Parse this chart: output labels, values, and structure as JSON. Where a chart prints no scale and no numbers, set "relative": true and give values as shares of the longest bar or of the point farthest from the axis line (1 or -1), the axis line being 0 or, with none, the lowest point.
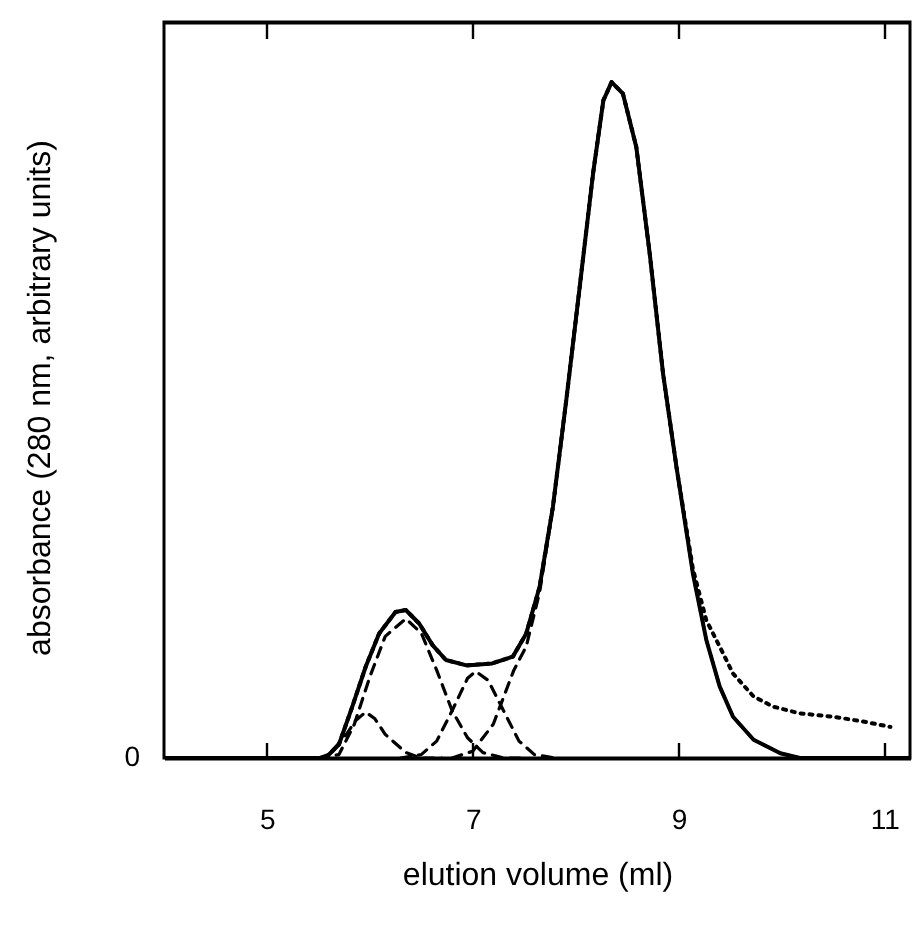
{
  "chart_data": {
    "type": "line",
    "relative": true,
    "xlabel": "elution volume (ml)",
    "ylabel": "absorbance (280 nm, arbitrary units)",
    "xlim": [
      4,
      11.25
    ],
    "xticks": [
      5,
      7,
      9,
      11
    ],
    "grid": false,
    "annotations": [
      "0"
    ],
    "series": [
      {
        "color": "#000000",
        "line_style": "solid",
        "x": [
          4.0,
          5.57,
          5.7,
          5.83,
          5.96,
          6.09,
          6.25,
          6.35,
          6.48,
          6.61,
          6.74,
          6.94,
          7.19,
          7.39,
          7.52,
          7.65,
          7.78,
          7.91,
          8.04,
          8.17,
          8.27,
          8.35,
          8.46,
          8.59,
          8.72,
          8.85,
          8.98,
          9.14,
          9.27,
          9.4,
          9.53,
          9.73,
          9.99,
          10.18,
          11.25
        ],
        "values": [
          0,
          0,
          0.02,
          0.076,
          0.135,
          0.184,
          0.216,
          0.219,
          0.199,
          0.167,
          0.145,
          0.137,
          0.14,
          0.15,
          0.184,
          0.253,
          0.372,
          0.53,
          0.697,
          0.865,
          0.973,
          1.0,
          0.983,
          0.904,
          0.747,
          0.569,
          0.431,
          0.273,
          0.175,
          0.106,
          0.061,
          0.027,
          0.007,
          0,
          0
        ]
      },
      {
        "color": "#000000",
        "line_style": "dotted",
        "x": [
          4.0,
          5.57,
          5.7,
          5.83,
          5.96,
          6.09,
          6.25,
          6.35,
          6.48,
          6.61,
          6.74,
          6.94,
          7.19,
          7.39,
          7.52,
          7.65,
          7.78,
          7.91,
          8.04,
          8.17,
          8.27,
          8.35,
          8.46,
          8.59,
          8.72,
          8.85,
          8.98,
          9.14,
          9.27,
          9.4,
          9.53,
          9.73,
          9.92,
          10.18,
          10.51,
          10.83,
          11.06
        ],
        "values": [
          0,
          0,
          0.02,
          0.076,
          0.135,
          0.184,
          0.216,
          0.219,
          0.199,
          0.167,
          0.145,
          0.137,
          0.14,
          0.15,
          0.184,
          0.253,
          0.372,
          0.53,
          0.697,
          0.865,
          0.973,
          1.0,
          0.983,
          0.904,
          0.747,
          0.569,
          0.431,
          0.28,
          0.204,
          0.165,
          0.125,
          0.091,
          0.076,
          0.066,
          0.061,
          0.053,
          0.046
        ]
      },
      {
        "color": "#000000",
        "line_style": "dashed",
        "x": [
          5.5,
          5.6,
          5.75,
          5.86,
          5.96,
          6.05,
          6.15,
          6.35,
          6.5,
          6.7
        ],
        "values": [
          0,
          0.005,
          0.03,
          0.055,
          0.068,
          0.058,
          0.035,
          0.008,
          0,
          0
        ]
      },
      {
        "color": "#000000",
        "line_style": "dashed",
        "x": [
          5.5,
          5.7,
          5.85,
          6.0,
          6.15,
          6.35,
          6.5,
          6.65,
          6.8,
          6.95,
          7.1,
          7.3,
          7.5
        ],
        "values": [
          0,
          0.005,
          0.05,
          0.12,
          0.18,
          0.206,
          0.185,
          0.13,
          0.07,
          0.03,
          0.008,
          0,
          0
        ]
      },
      {
        "color": "#000000",
        "line_style": "dashed",
        "x": [
          6.3,
          6.5,
          6.65,
          6.8,
          6.95,
          7.03,
          7.15,
          7.3,
          7.45,
          7.6,
          7.8
        ],
        "values": [
          0,
          0.005,
          0.025,
          0.07,
          0.118,
          0.128,
          0.115,
          0.07,
          0.025,
          0.005,
          0
        ]
      },
      {
        "color": "#000000",
        "line_style": "dashed",
        "x": [
          6.8,
          7.0,
          7.2,
          7.4,
          7.52,
          7.65,
          7.78,
          7.91,
          8.04,
          8.17,
          8.27,
          8.35,
          8.46,
          8.59,
          8.72,
          8.85,
          8.98,
          9.14,
          9.27,
          9.4,
          9.53,
          9.73,
          9.99,
          10.18,
          10.5
        ],
        "values": [
          0,
          0.01,
          0.05,
          0.13,
          0.165,
          0.245,
          0.37,
          0.53,
          0.697,
          0.865,
          0.973,
          1.0,
          0.983,
          0.904,
          0.747,
          0.569,
          0.431,
          0.273,
          0.175,
          0.106,
          0.061,
          0.027,
          0.007,
          0,
          0
        ]
      }
    ]
  }
}
